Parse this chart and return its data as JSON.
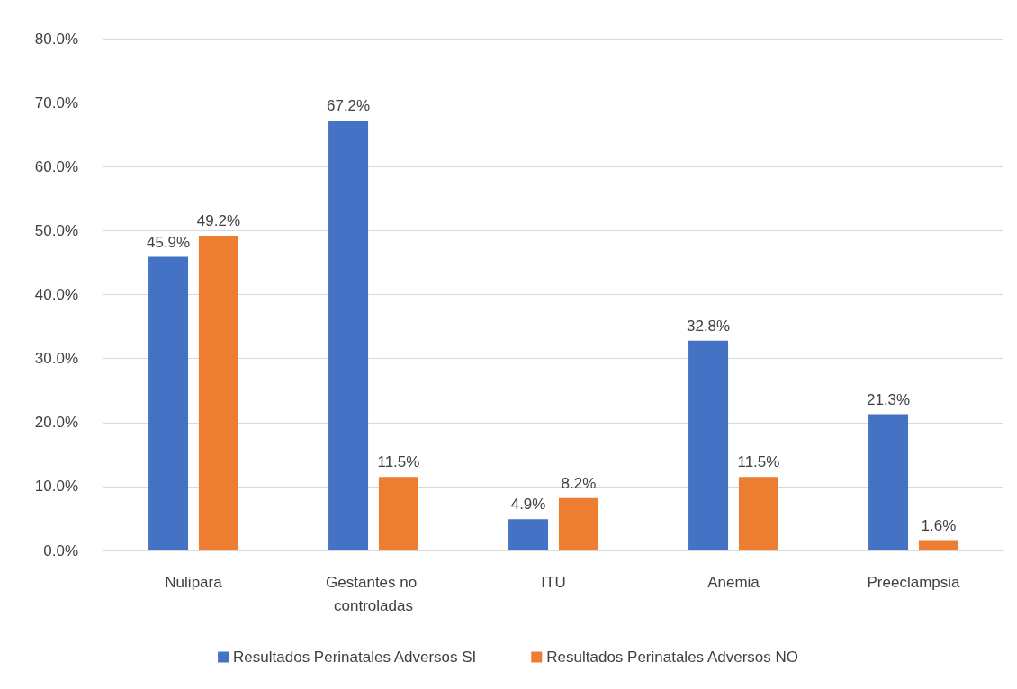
{
  "chart_data": {
    "type": "bar",
    "categories": [
      "Nulipara",
      "Gestantes no controladas",
      "ITU",
      "Anemia",
      "Preeclampsia"
    ],
    "series": [
      {
        "name": "Resultados Perinatales Adversos SI",
        "color": "#4472c4",
        "values": [
          45.9,
          67.2,
          4.9,
          32.8,
          21.3
        ],
        "value_labels": [
          "45.9%",
          "67.2%",
          "4.9%",
          "32.8%",
          "21.3%"
        ]
      },
      {
        "name": "Resultados Perinatales Adversos NO",
        "color": "#ed7d31",
        "values": [
          49.2,
          11.5,
          8.2,
          11.5,
          1.6
        ],
        "value_labels": [
          "49.2%",
          "11.5%",
          "8.2%",
          "11.5%",
          "1.6%"
        ]
      }
    ],
    "ylim": [
      0,
      80
    ],
    "yticks": [
      {
        "value": 0,
        "label": "0.0%"
      },
      {
        "value": 10,
        "label": "10.0%"
      },
      {
        "value": 20,
        "label": "20.0%"
      },
      {
        "value": 30,
        "label": "30.0%"
      },
      {
        "value": 40,
        "label": "40.0%"
      },
      {
        "value": 50,
        "label": "50.0%"
      },
      {
        "value": 60,
        "label": "60.0%"
      },
      {
        "value": 70,
        "label": "70.0%"
      },
      {
        "value": 80,
        "label": "80.0%"
      }
    ],
    "grid": "y",
    "legend": "bottom"
  }
}
